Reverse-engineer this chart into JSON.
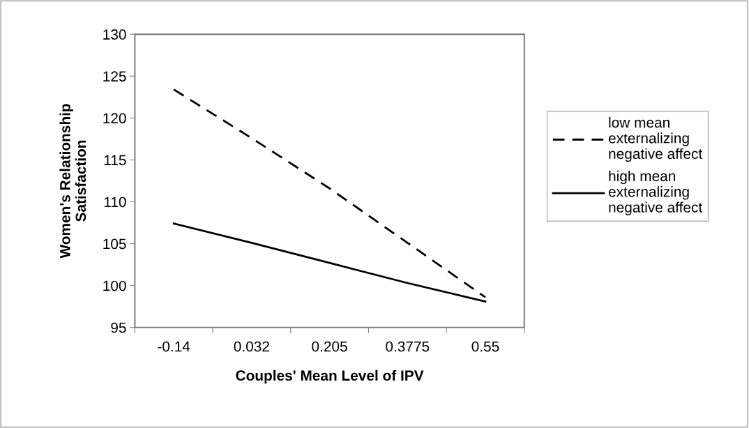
{
  "chart_data": {
    "type": "line",
    "xlabel": "Couples' Mean Level of IPV",
    "ylabel": "Women's Relationship\nSatisfaction",
    "categories": [
      "-0.14",
      "0.032",
      "0.205",
      "0.3775",
      "0.55"
    ],
    "series": [
      {
        "name": "low mean\nexternalizing\nnegative affect",
        "color": "#000000",
        "line_style": "dashed",
        "values": [
          123.4,
          117.6,
          111.6,
          105.1,
          98.6
        ]
      },
      {
        "name": "high mean\nexternalizing\nnegative affect",
        "color": "#000000",
        "line_style": "solid",
        "values": [
          107.4,
          105.1,
          102.7,
          100.3,
          98.1
        ]
      }
    ],
    "ylim": [
      95,
      130
    ],
    "yticks": [
      95,
      100,
      105,
      110,
      115,
      120,
      125,
      130
    ],
    "grid": false,
    "legend": "right",
    "marker": "none"
  }
}
